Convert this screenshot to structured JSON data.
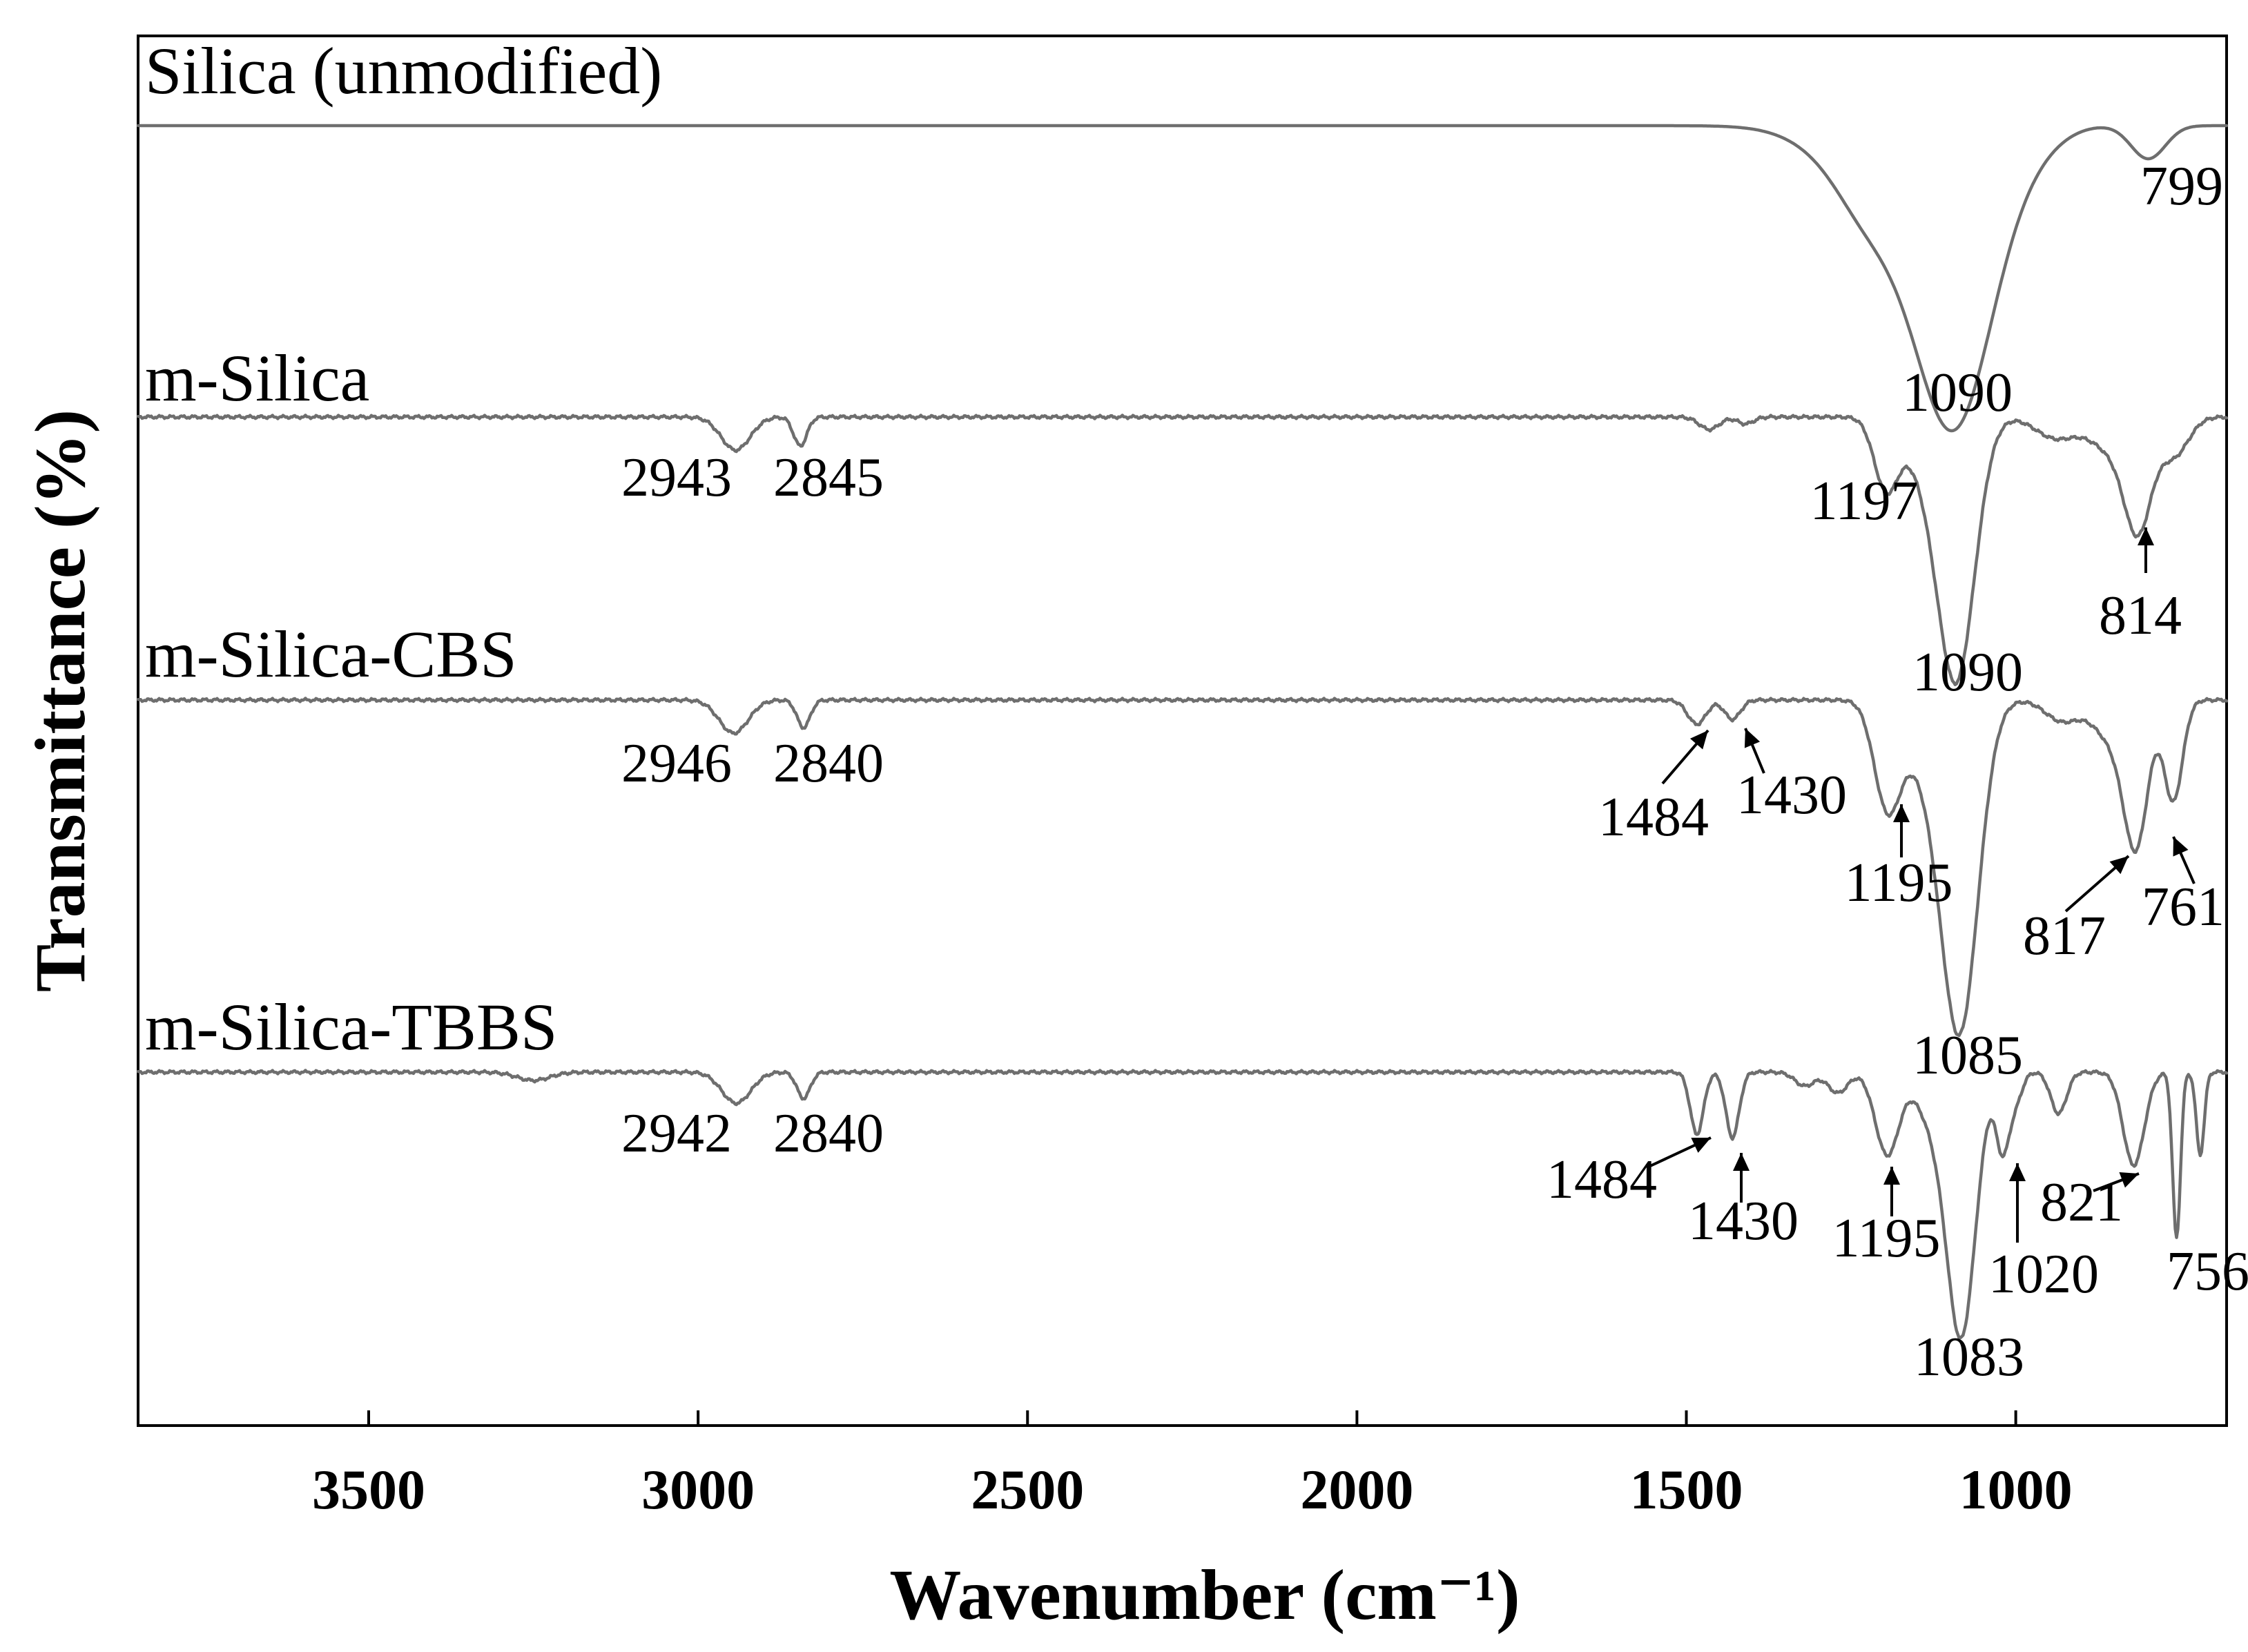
{
  "chart_data": {
    "type": "line",
    "title": "",
    "xlabel": "Wavenumber (cm⁻¹)",
    "ylabel": "Transmittance (%)",
    "xlim": [
      3850,
      680
    ],
    "x_reversed": true,
    "y_scale": "arbitrary, vertically offset spectra",
    "grid": false,
    "legend": "none (series labelled directly above each trace)",
    "xticks": [
      3500,
      3000,
      2500,
      2000,
      1500,
      1000
    ],
    "series": [
      {
        "name": "Silica (unmodified)",
        "baseline": 0,
        "features": [
          {
            "x": 1090,
            "depth": 355,
            "width": 55,
            "label": "1090"
          },
          {
            "x": 1180,
            "depth": 140,
            "width": 85
          },
          {
            "x": 1230,
            "depth": 25,
            "width": 40
          },
          {
            "x": 1010,
            "depth": 30,
            "width": 40
          },
          {
            "x": 960,
            "depth": 20,
            "width": 40
          },
          {
            "x": 799,
            "depth": 48,
            "width": 26,
            "label": "799"
          }
        ],
        "peak_labels": [
          "1090",
          "799"
        ]
      },
      {
        "name": "m-Silica",
        "baseline": 0,
        "features": [
          {
            "x": 2943,
            "depth": 48,
            "width": 22,
            "label": "2943"
          },
          {
            "x": 2845,
            "depth": 42,
            "width": 10,
            "label": "2845"
          },
          {
            "x": 1465,
            "depth": 18,
            "width": 15
          },
          {
            "x": 1410,
            "depth": 10,
            "width": 12
          },
          {
            "x": 1197,
            "depth": 100,
            "width": 18,
            "label": "1197"
          },
          {
            "x": 1090,
            "depth": 370,
            "width": 28,
            "label": "1090"
          },
          {
            "x": 1140,
            "depth": 60,
            "width": 30
          },
          {
            "x": 940,
            "depth": 30,
            "width": 30
          },
          {
            "x": 850,
            "depth": 50,
            "width": 35
          },
          {
            "x": 814,
            "depth": 140,
            "width": 20,
            "label": "814"
          },
          {
            "x": 760,
            "depth": 55,
            "width": 22
          }
        ],
        "peak_labels": [
          "2943",
          "2845",
          "1197",
          "1090",
          "814"
        ]
      },
      {
        "name": "m-Silica-CBS",
        "baseline": 0,
        "features": [
          {
            "x": 2946,
            "depth": 48,
            "width": 22,
            "label": "2946"
          },
          {
            "x": 2840,
            "depth": 40,
            "width": 10,
            "label": "2840"
          },
          {
            "x": 1484,
            "depth": 35,
            "width": 14,
            "label": "1484"
          },
          {
            "x": 1430,
            "depth": 28,
            "width": 12,
            "label": "1430"
          },
          {
            "x": 1195,
            "depth": 150,
            "width": 20,
            "label": "1195"
          },
          {
            "x": 1085,
            "depth": 470,
            "width": 28,
            "label": "1085"
          },
          {
            "x": 1140,
            "depth": 80,
            "width": 30
          },
          {
            "x": 930,
            "depth": 30,
            "width": 25
          },
          {
            "x": 850,
            "depth": 60,
            "width": 30
          },
          {
            "x": 817,
            "depth": 185,
            "width": 18,
            "label": "817"
          },
          {
            "x": 761,
            "depth": 145,
            "width": 14,
            "label": "761"
          }
        ],
        "peak_labels": [
          "2946",
          "2840",
          "1484",
          "1430",
          "1195",
          "817",
          "761",
          "1085"
        ]
      },
      {
        "name": "m-Silica-TBBS",
        "baseline": 0,
        "features": [
          {
            "x": 3250,
            "depth": 12,
            "width": 25
          },
          {
            "x": 2942,
            "depth": 45,
            "width": 22,
            "label": "2942"
          },
          {
            "x": 2840,
            "depth": 38,
            "width": 10,
            "label": "2840"
          },
          {
            "x": 1484,
            "depth": 90,
            "width": 10,
            "label": "1484"
          },
          {
            "x": 1430,
            "depth": 95,
            "width": 10,
            "label": "1430"
          },
          {
            "x": 1320,
            "depth": 20,
            "width": 15
          },
          {
            "x": 1270,
            "depth": 30,
            "width": 15
          },
          {
            "x": 1195,
            "depth": 120,
            "width": 18,
            "label": "1195"
          },
          {
            "x": 1083,
            "depth": 380,
            "width": 22,
            "label": "1083"
          },
          {
            "x": 1130,
            "depth": 60,
            "width": 22
          },
          {
            "x": 1020,
            "depth": 110,
            "width": 10,
            "label": "1020"
          },
          {
            "x": 1000,
            "depth": 40,
            "width": 10
          },
          {
            "x": 935,
            "depth": 60,
            "width": 12
          },
          {
            "x": 821,
            "depth": 135,
            "width": 16,
            "label": "821"
          },
          {
            "x": 756,
            "depth": 240,
            "width": 6,
            "label": "756"
          },
          {
            "x": 720,
            "depth": 120,
            "width": 6
          }
        ],
        "peak_labels": [
          "2942",
          "2840",
          "1484",
          "1430",
          "1195",
          "1020",
          "821",
          "756",
          "1083"
        ]
      }
    ]
  }
}
